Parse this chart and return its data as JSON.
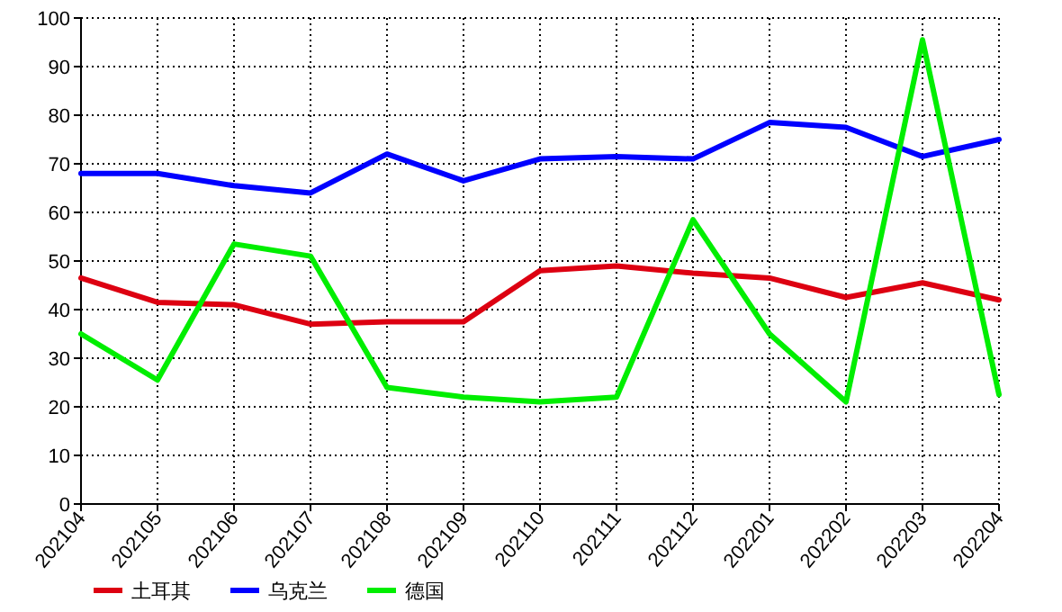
{
  "chart_data": {
    "type": "line",
    "categories": [
      "202104",
      "202105",
      "202106",
      "202107",
      "202108",
      "202109",
      "202110",
      "202111",
      "202112",
      "202201",
      "202202",
      "202203",
      "202204"
    ],
    "series": [
      {
        "name": "土耳其",
        "color": "#dd0011",
        "values": [
          46.5,
          41.5,
          41,
          37,
          37.5,
          37.5,
          48,
          49,
          47.5,
          46.5,
          42.5,
          45.5,
          42
        ]
      },
      {
        "name": "乌克兰",
        "color": "#0000ff",
        "values": [
          68,
          68,
          65.5,
          64,
          72,
          66.5,
          71,
          71.5,
          71,
          78.5,
          77.5,
          71.5,
          75
        ]
      },
      {
        "name": "德国",
        "color": "#00ee00",
        "values": [
          35,
          25.5,
          53.5,
          51,
          24,
          22,
          21,
          22,
          58.5,
          35,
          21,
          95.5,
          22.5
        ]
      }
    ],
    "ylim": [
      0,
      100
    ],
    "yticks": [
      0,
      10,
      20,
      30,
      40,
      50,
      60,
      70,
      80,
      90,
      100
    ],
    "grid": true,
    "legend": "bottom",
    "marker": "none",
    "line_style": "solid"
  }
}
